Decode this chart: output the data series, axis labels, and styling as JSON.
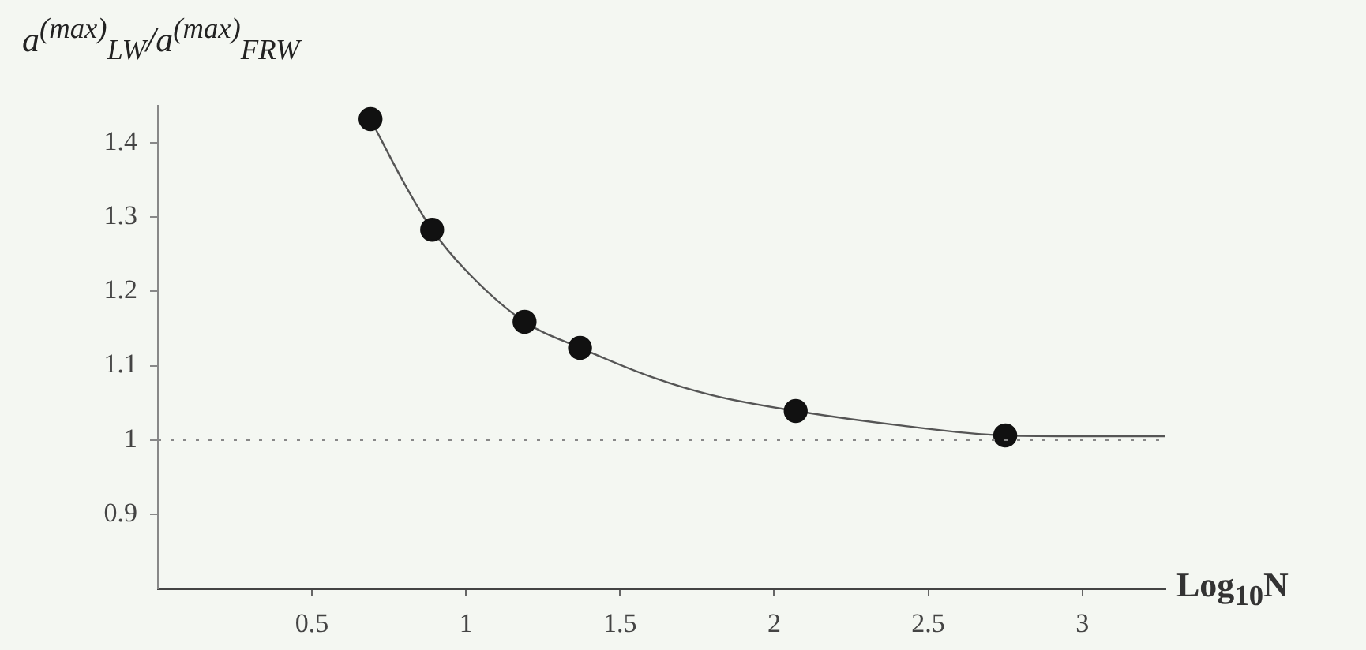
{
  "chart_data": {
    "type": "scatter",
    "ylabel": "a$^{(max)}$$_{LW}$/a$^{(max)}$$_{FRW}$",
    "xlabel": "Log$_{10}$N",
    "series": [
      {
        "color": "#111111",
        "marker": "circle",
        "x": [
          0.69,
          0.89,
          1.19,
          1.37,
          2.07,
          2.75
        ],
        "values": [
          1.432,
          1.283,
          1.159,
          1.124,
          1.039,
          1.006
        ]
      },
      {
        "type": "line",
        "color": "#555555",
        "marker": "none",
        "line_style": "solid",
        "x": [
          0.69,
          0.8,
          0.89,
          1.0,
          1.19,
          1.37,
          1.6,
          1.8,
          2.07,
          2.4,
          2.75,
          3.0,
          3.27
        ],
        "values": [
          1.432,
          1.345,
          1.283,
          1.228,
          1.159,
          1.124,
          1.085,
          1.06,
          1.039,
          1.02,
          1.006,
          1.005,
          1.005
        ]
      }
    ],
    "ref_lines": [
      {
        "axis": "y",
        "value": 1,
        "color": "#888888",
        "line_style": "dotted"
      }
    ],
    "xlim": [
      0,
      3.27
    ],
    "ylim": [
      0.8,
      1.45
    ],
    "xticks": [
      0.5,
      1,
      1.5,
      2,
      2.5,
      3
    ],
    "yticks": [
      0.9,
      1,
      1.1,
      1.2,
      1.3,
      1.4
    ],
    "grid": false,
    "legend": false
  }
}
